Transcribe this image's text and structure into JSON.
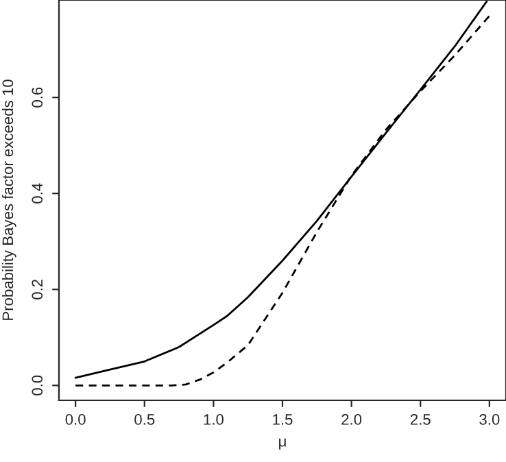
{
  "chart_data": {
    "type": "line",
    "xlabel": "μ",
    "ylabel": "Probability Bayes factor exceeds 10",
    "xlim": [
      -0.12,
      3.12
    ],
    "ylim": [
      -0.031,
      0.803
    ],
    "xticks": [
      {
        "value": 0,
        "label": "0.0"
      },
      {
        "value": 0.5,
        "label": "0.5"
      },
      {
        "value": 1,
        "label": "1.0"
      },
      {
        "value": 1.5,
        "label": "1.5"
      },
      {
        "value": 2,
        "label": "2.0"
      },
      {
        "value": 2.5,
        "label": "2.5"
      },
      {
        "value": 3,
        "label": "3.0"
      }
    ],
    "yticks": [
      {
        "value": 0,
        "label": "0.0"
      },
      {
        "value": 0.2,
        "label": "0.2"
      },
      {
        "value": 0.4,
        "label": "0.4"
      },
      {
        "value": 0.6,
        "label": "0.6"
      }
    ],
    "grid": false,
    "series": [
      {
        "color": "#000000",
        "line_style": "solid",
        "x": [
          0.0,
          0.25,
          0.5,
          0.75,
          1.0,
          1.1,
          1.25,
          1.5,
          1.75,
          2.0,
          2.25,
          2.5,
          2.75,
          2.98
        ],
        "values": [
          0.016,
          0.033,
          0.05,
          0.08,
          0.126,
          0.145,
          0.184,
          0.26,
          0.343,
          0.435,
          0.526,
          0.616,
          0.707,
          0.8
        ]
      },
      {
        "color": "#000000",
        "line_style": "dashed",
        "x": [
          0.0,
          0.5,
          0.7,
          0.8,
          0.9,
          1.0,
          1.1,
          1.25,
          1.5,
          1.75,
          2.0,
          2.25,
          2.5,
          2.75,
          3.0
        ],
        "values": [
          0.0,
          0.0,
          0.0,
          0.002,
          0.012,
          0.027,
          0.048,
          0.084,
          0.193,
          0.32,
          0.437,
          0.533,
          0.613,
          0.688,
          0.77
        ]
      }
    ]
  }
}
